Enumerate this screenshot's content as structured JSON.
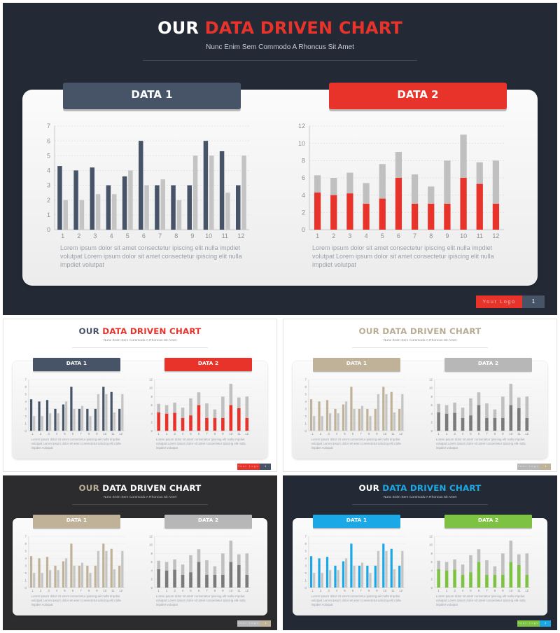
{
  "deck": {
    "title_part1": "OUR ",
    "title_part2": "DATA DRIVEN CHART",
    "subtitle": "Nunc Enim Sem Commodo A Rhoncus Sit Amet",
    "lorem": "Lorem ipsum dolor sit amet consectetur ipiscing elit nulla impdiet volutpat Lorem ipsum dolor sit amet consectetur ipiscing elit nulla impdiet volutpat",
    "logo_text": "Your Logo",
    "page_number": "1"
  },
  "variants": [
    {
      "id": "main",
      "bg": "#232a36",
      "title1": "#ffffff",
      "title2": "#e8332a",
      "sub": "#c9cdd3",
      "tab1": "#475468",
      "tab2": "#e8332a",
      "b1": "#475468",
      "b2a": "#e8332a",
      "b2b": "#c0c0c0",
      "logo": "#e8332a",
      "logo_text_color": "#f3c1be",
      "pagebox": "#475468"
    },
    {
      "id": "light-red",
      "bg": "#ffffff",
      "title1": "#475468",
      "title2": "#e8332a",
      "sub": "#8a8f96",
      "tab1": "#475468",
      "tab2": "#e8332a",
      "b1": "#475468",
      "b2a": "#e8332a",
      "b2b": "#c0c0c0",
      "logo": "#e8332a",
      "logo_text_color": "#f3c1be",
      "pagebox": "#475468"
    },
    {
      "id": "light-tan",
      "bg": "#ffffff",
      "title1": "#b9ac94",
      "title2": "#b9ac94",
      "sub": "#8a8f96",
      "tab1": "#bfb298",
      "tab2": "#b7b7b7",
      "b1": "#bfb298",
      "b2a": "#7a7a7a",
      "b2b": "#c0c0c0",
      "logo": "#b7b7b7",
      "logo_text_color": "#e8e8e8",
      "pagebox": "#bfb298"
    },
    {
      "id": "dark-tan",
      "bg": "#2c2c2e",
      "title1": "#b9ac94",
      "title2": "#ffffff",
      "sub": "#bdbdbd",
      "tab1": "#bfb298",
      "tab2": "#b7b7b7",
      "b1": "#bfb298",
      "b2a": "#7a7a7a",
      "b2b": "#c0c0c0",
      "logo": "#b7b7b7",
      "logo_text_color": "#e8e8e8",
      "pagebox": "#bfb298"
    },
    {
      "id": "dark-blue",
      "bg": "#232a36",
      "title1": "#ffffff",
      "title2": "#1aa9e6",
      "sub": "#c9cdd3",
      "tab1": "#1aa9e6",
      "tab2": "#7dc242",
      "b1": "#1aa9e6",
      "b2a": "#7dc242",
      "b2b": "#c0c0c0",
      "logo": "#7dc242",
      "logo_text_color": "#e7f5d8",
      "pagebox": "#1aa9e6"
    }
  ],
  "chart_data": [
    {
      "label": "DATA 1",
      "type": "bar",
      "categories": [
        "1",
        "2",
        "3",
        "4",
        "5",
        "6",
        "7",
        "8",
        "9",
        "10",
        "11",
        "12"
      ],
      "yticks": [
        "0",
        "1",
        "2",
        "3",
        "4",
        "5",
        "6",
        "7"
      ],
      "ylim": [
        0,
        7
      ],
      "series": [
        {
          "values": [
            4.3,
            4.0,
            4.2,
            3.0,
            3.6,
            6.0,
            3.0,
            3.0,
            3.0,
            6.0,
            5.3,
            3.0
          ]
        },
        {
          "values": [
            2.0,
            2.0,
            2.4,
            2.4,
            4.0,
            3.0,
            3.4,
            2.0,
            5.0,
            5.0,
            2.5,
            5.0
          ]
        }
      ],
      "grid": true
    },
    {
      "label": "DATA 2",
      "type": "bar",
      "stacked": true,
      "categories": [
        "1",
        "2",
        "3",
        "4",
        "5",
        "6",
        "7",
        "8",
        "9",
        "10",
        "11",
        "12"
      ],
      "yticks": [
        "0",
        "2",
        "4",
        "6",
        "8",
        "10",
        "12"
      ],
      "ylim": [
        0,
        12
      ],
      "series": [
        {
          "values": [
            4.3,
            4.0,
            4.2,
            3.0,
            3.6,
            6.0,
            3.0,
            3.0,
            3.0,
            6.0,
            5.3,
            3.0
          ]
        },
        {
          "values": [
            2.0,
            2.0,
            2.4,
            2.4,
            4.0,
            3.0,
            3.4,
            2.0,
            5.0,
            5.0,
            2.5,
            5.0
          ]
        }
      ],
      "grid": true
    }
  ]
}
